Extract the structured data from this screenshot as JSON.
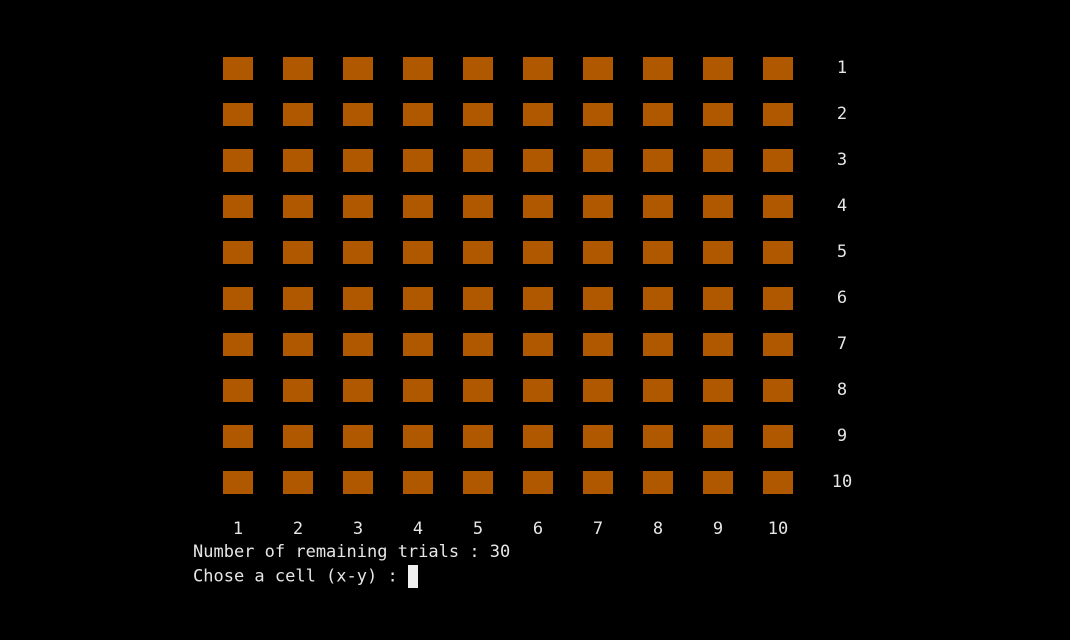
{
  "grid": {
    "row_labels": [
      "1",
      "2",
      "3",
      "4",
      "5",
      "6",
      "7",
      "8",
      "9",
      "10"
    ],
    "column_labels": [
      "1",
      "2",
      "3",
      "4",
      "5",
      "6",
      "7",
      "8",
      "9",
      "10"
    ]
  },
  "status": "Number of remaining trials : 30",
  "prompt": "Chose a cell (x-y) :"
}
